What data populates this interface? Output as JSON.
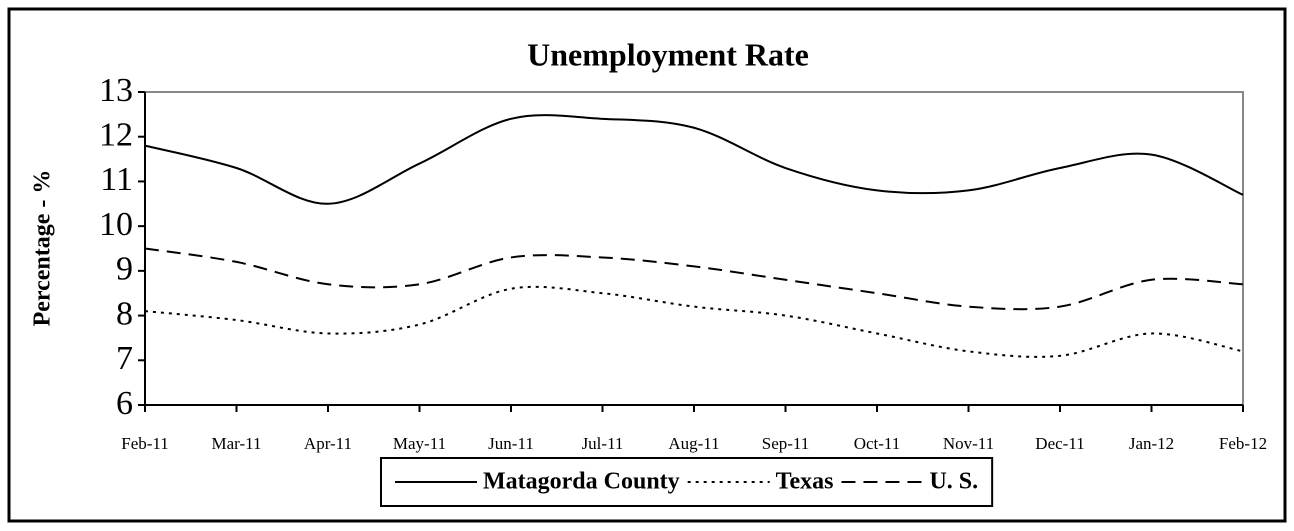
{
  "chart_data": {
    "type": "line",
    "title": "Unemployment Rate",
    "y_label": "Percentage - %",
    "categories": [
      "Feb-11",
      "Mar-11",
      "Apr-11",
      "May-11",
      "Jun-11",
      "Jul-11",
      "Aug-11",
      "Sep-11",
      "Oct-11",
      "Nov-11",
      "Dec-11",
      "Jan-12",
      "Feb-12"
    ],
    "series": [
      {
        "name": "Matagorda County",
        "color": "#000000",
        "line_style": "solid",
        "values": [
          11.8,
          11.3,
          10.5,
          11.4,
          12.4,
          12.4,
          12.2,
          11.3,
          10.8,
          10.8,
          11.3,
          11.6,
          10.7
        ]
      },
      {
        "name": "Texas",
        "color": "#000000",
        "line_style": "dotted",
        "values": [
          8.1,
          7.9,
          7.6,
          7.8,
          8.6,
          8.5,
          8.2,
          8.0,
          7.6,
          7.2,
          7.1,
          7.6,
          7.2
        ]
      },
      {
        "name": "U. S.",
        "color": "#000000",
        "line_style": "dashed",
        "values": [
          9.5,
          9.2,
          8.7,
          8.7,
          9.3,
          9.3,
          9.1,
          8.8,
          8.5,
          8.2,
          8.2,
          8.8,
          8.7
        ]
      }
    ],
    "ylim": [
      6,
      13
    ],
    "yticks": [
      6,
      7,
      8,
      9,
      10,
      11,
      12,
      13
    ],
    "smooth": true,
    "legend": "bottom"
  }
}
